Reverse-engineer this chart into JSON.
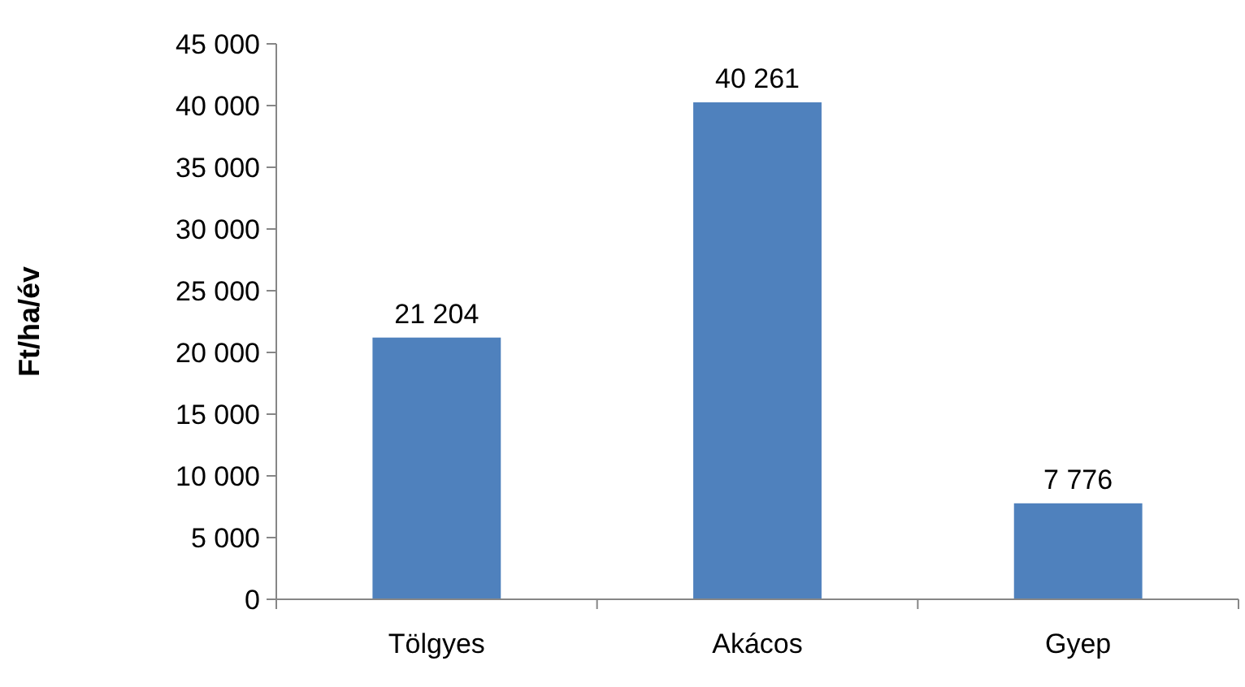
{
  "chart_data": {
    "type": "bar",
    "ylabel": "Ft/ha/év",
    "categories": [
      "Tölgyes",
      "Akácos",
      "Gyep"
    ],
    "values": [
      21204,
      40261,
      7776
    ],
    "color": "#4f81bd",
    "value_labels": [
      "21 204",
      "40 261",
      "7 776"
    ],
    "ylim": [
      0,
      45000
    ],
    "yticks": [
      {
        "value": 0,
        "label": "0"
      },
      {
        "value": 5000,
        "label": "5 000"
      },
      {
        "value": 10000,
        "label": "10 000"
      },
      {
        "value": 15000,
        "label": "15 000"
      },
      {
        "value": 20000,
        "label": "20 000"
      },
      {
        "value": 25000,
        "label": "25 000"
      },
      {
        "value": 30000,
        "label": "30 000"
      },
      {
        "value": 35000,
        "label": "35 000"
      },
      {
        "value": 40000,
        "label": "40 000"
      },
      {
        "value": 45000,
        "label": "45 000"
      }
    ],
    "grid": false
  }
}
